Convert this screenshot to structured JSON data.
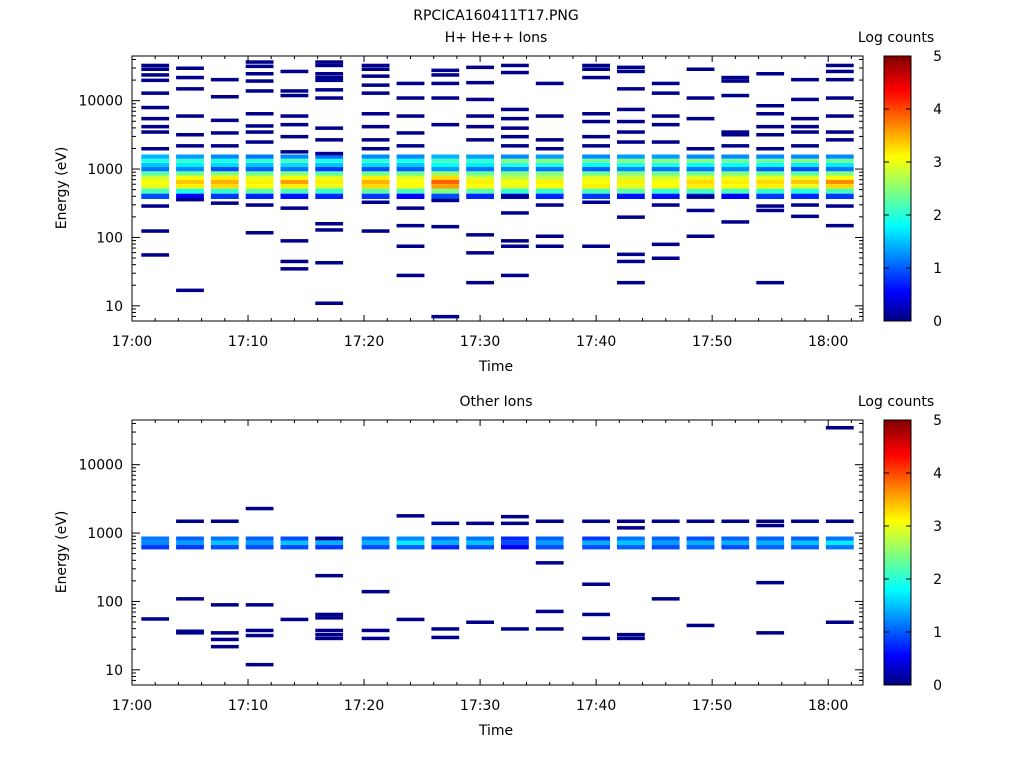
{
  "figure_title": "RPCICA160411T17.PNG",
  "chart_data": [
    {
      "type": "heatmap",
      "title": "H+ He++ Ions",
      "xlabel": "Time",
      "ylabel": "Energy (eV)",
      "x_ticks": [
        "17:00",
        "17:10",
        "17:20",
        "17:30",
        "17:40",
        "17:50",
        "18:00"
      ],
      "x_range": [
        "17:00",
        "18:03"
      ],
      "y_scale": "log",
      "y_ticks": [
        "10",
        "100",
        "1000",
        "10000"
      ],
      "y_range": [
        6,
        45000
      ],
      "colorbar": {
        "label": "Log counts",
        "ticks": [
          "0",
          "1",
          "2",
          "3",
          "4",
          "5"
        ],
        "range": [
          0,
          5
        ]
      },
      "time_bins": [
        "17:02",
        "17:05",
        "17:08",
        "17:11",
        "17:14",
        "17:17",
        "17:21",
        "17:24",
        "17:27",
        "17:30",
        "17:33",
        "17:36",
        "17:40",
        "17:43",
        "17:46",
        "17:49",
        "17:52",
        "17:55",
        "17:58",
        "18:01"
      ],
      "band_energies_eV": [
        400,
        480,
        560,
        650,
        750,
        860,
        1000,
        1150,
        1320,
        1520
      ],
      "band_log_counts": [
        [
          1.0,
          0.6,
          0.9,
          0.8,
          0.7,
          0.8,
          0.9,
          0.6,
          1.0,
          0.8,
          0.6,
          0.8,
          0.9,
          0.7,
          0.7,
          0.8,
          0.6,
          0.9,
          0.8,
          0.9
        ],
        [
          2.2,
          2.0,
          2.1,
          2.3,
          2.2,
          2.1,
          2.3,
          2.2,
          2.5,
          2.3,
          2.1,
          2.1,
          2.2,
          2.3,
          2.1,
          2.2,
          2.2,
          2.1,
          2.0,
          2.2
        ],
        [
          3.0,
          3.2,
          3.3,
          3.1,
          3.2,
          3.0,
          3.3,
          3.1,
          3.6,
          3.1,
          3.0,
          3.1,
          3.2,
          3.0,
          3.1,
          3.2,
          3.1,
          3.2,
          3.0,
          3.3
        ],
        [
          3.1,
          3.4,
          3.5,
          3.2,
          3.6,
          3.2,
          3.5,
          3.1,
          3.9,
          3.2,
          3.1,
          3.2,
          3.1,
          3.2,
          3.1,
          3.3,
          3.2,
          3.3,
          3.4,
          3.7
        ],
        [
          2.9,
          3.1,
          3.2,
          3.0,
          3.1,
          3.0,
          3.2,
          3.0,
          3.3,
          2.9,
          2.8,
          2.8,
          3.0,
          2.9,
          2.9,
          3.0,
          3.0,
          3.0,
          3.0,
          3.1
        ],
        [
          2.3,
          2.4,
          2.5,
          2.4,
          2.5,
          2.3,
          2.4,
          2.4,
          2.6,
          2.4,
          2.5,
          2.5,
          2.4,
          2.5,
          2.4,
          2.4,
          2.5,
          2.4,
          2.3,
          2.5
        ],
        [
          1.2,
          1.3,
          1.0,
          1.1,
          1.2,
          0.9,
          1.0,
          1.1,
          1.4,
          1.2,
          1.3,
          1.2,
          1.1,
          1.3,
          1.2,
          1.2,
          1.3,
          1.1,
          1.0,
          1.2
        ],
        [
          1.6,
          1.8,
          1.7,
          1.6,
          1.7,
          1.6,
          1.7,
          1.6,
          1.9,
          1.8,
          2.0,
          2.0,
          1.9,
          2.0,
          2.0,
          1.9,
          1.9,
          1.9,
          1.8,
          1.8
        ],
        [
          2.0,
          2.1,
          2.0,
          2.1,
          2.2,
          2.0,
          2.1,
          2.0,
          2.2,
          2.1,
          2.5,
          2.5,
          2.4,
          2.5,
          2.5,
          2.5,
          2.4,
          2.4,
          2.5,
          2.4
        ],
        [
          1.5,
          1.4,
          1.3,
          1.2,
          1.3,
          1.2,
          1.3,
          1.3,
          1.5,
          1.4,
          1.3,
          1.4,
          1.3,
          1.4,
          1.4,
          1.3,
          1.3,
          1.3,
          1.3,
          1.3
        ]
      ],
      "sparse_cells": [
        [
          0,
          33000
        ],
        [
          0,
          29000
        ],
        [
          0,
          24000
        ],
        [
          0,
          20000
        ],
        [
          0,
          13000
        ],
        [
          0,
          8000
        ],
        [
          0,
          5500
        ],
        [
          0,
          4200
        ],
        [
          0,
          3500
        ],
        [
          0,
          2000
        ],
        [
          0,
          290
        ],
        [
          0,
          125
        ],
        [
          0,
          56
        ],
        [
          1,
          30000
        ],
        [
          1,
          22000
        ],
        [
          1,
          15000
        ],
        [
          1,
          6000
        ],
        [
          1,
          3200
        ],
        [
          1,
          2200
        ],
        [
          1,
          360
        ],
        [
          1,
          17
        ],
        [
          2,
          20500
        ],
        [
          2,
          11500
        ],
        [
          2,
          5200
        ],
        [
          2,
          3400
        ],
        [
          2,
          2200
        ],
        [
          2,
          320
        ],
        [
          3,
          37000
        ],
        [
          3,
          32000
        ],
        [
          3,
          25000
        ],
        [
          3,
          19500
        ],
        [
          3,
          14000
        ],
        [
          3,
          6500
        ],
        [
          3,
          4300
        ],
        [
          3,
          3500
        ],
        [
          3,
          2500
        ],
        [
          3,
          300
        ],
        [
          3,
          118
        ],
        [
          4,
          27000
        ],
        [
          4,
          14000
        ],
        [
          4,
          12000
        ],
        [
          4,
          6000
        ],
        [
          4,
          4500
        ],
        [
          4,
          3000
        ],
        [
          4,
          1800
        ],
        [
          4,
          270
        ],
        [
          4,
          90
        ],
        [
          4,
          45
        ],
        [
          4,
          35
        ],
        [
          5,
          37000
        ],
        [
          5,
          33000
        ],
        [
          5,
          25000
        ],
        [
          5,
          22000
        ],
        [
          5,
          20000
        ],
        [
          5,
          14500
        ],
        [
          5,
          11000
        ],
        [
          5,
          4000
        ],
        [
          5,
          2700
        ],
        [
          5,
          1700
        ],
        [
          5,
          160
        ],
        [
          5,
          130
        ],
        [
          5,
          43
        ],
        [
          5,
          11
        ],
        [
          6,
          33000
        ],
        [
          6,
          29000
        ],
        [
          6,
          23000
        ],
        [
          6,
          17000
        ],
        [
          6,
          13000
        ],
        [
          6,
          6500
        ],
        [
          6,
          4200
        ],
        [
          6,
          2700
        ],
        [
          6,
          2000
        ],
        [
          6,
          330
        ],
        [
          6,
          125
        ],
        [
          7,
          18000
        ],
        [
          7,
          11000
        ],
        [
          7,
          6000
        ],
        [
          7,
          3400
        ],
        [
          7,
          2200
        ],
        [
          7,
          270
        ],
        [
          7,
          150
        ],
        [
          7,
          75
        ],
        [
          7,
          28
        ],
        [
          8,
          28000
        ],
        [
          8,
          24000
        ],
        [
          8,
          18000
        ],
        [
          8,
          11000
        ],
        [
          8,
          4500
        ],
        [
          8,
          350
        ],
        [
          8,
          145
        ],
        [
          8,
          7
        ],
        [
          9,
          31000
        ],
        [
          9,
          18500
        ],
        [
          9,
          10500
        ],
        [
          9,
          6000
        ],
        [
          9,
          4200
        ],
        [
          9,
          2700
        ],
        [
          9,
          110
        ],
        [
          9,
          60
        ],
        [
          9,
          22
        ],
        [
          10,
          33000
        ],
        [
          10,
          26000
        ],
        [
          10,
          7500
        ],
        [
          10,
          5500
        ],
        [
          10,
          4000
        ],
        [
          10,
          3000
        ],
        [
          10,
          2200
        ],
        [
          10,
          400
        ],
        [
          10,
          230
        ],
        [
          10,
          90
        ],
        [
          10,
          75
        ],
        [
          10,
          28
        ],
        [
          11,
          18000
        ],
        [
          11,
          6000
        ],
        [
          11,
          2700
        ],
        [
          11,
          2000
        ],
        [
          11,
          300
        ],
        [
          11,
          105
        ],
        [
          11,
          75
        ],
        [
          12,
          33000
        ],
        [
          12,
          29000
        ],
        [
          12,
          22000
        ],
        [
          12,
          6500
        ],
        [
          12,
          5000
        ],
        [
          12,
          3000
        ],
        [
          12,
          2200
        ],
        [
          12,
          330
        ],
        [
          12,
          75
        ],
        [
          13,
          31000
        ],
        [
          13,
          27000
        ],
        [
          13,
          15000
        ],
        [
          13,
          7500
        ],
        [
          13,
          5000
        ],
        [
          13,
          3500
        ],
        [
          13,
          2500
        ],
        [
          13,
          200
        ],
        [
          13,
          57
        ],
        [
          13,
          45
        ],
        [
          13,
          22
        ],
        [
          14,
          18000
        ],
        [
          14,
          13000
        ],
        [
          14,
          6000
        ],
        [
          14,
          4500
        ],
        [
          14,
          2500
        ],
        [
          14,
          300
        ],
        [
          14,
          80
        ],
        [
          14,
          50
        ],
        [
          15,
          29000
        ],
        [
          15,
          11000
        ],
        [
          15,
          5500
        ],
        [
          15,
          2000
        ],
        [
          15,
          400
        ],
        [
          15,
          250
        ],
        [
          15,
          105
        ],
        [
          16,
          22000
        ],
        [
          16,
          19500
        ],
        [
          16,
          12000
        ],
        [
          16,
          3500
        ],
        [
          16,
          3200
        ],
        [
          16,
          2200
        ],
        [
          16,
          170
        ],
        [
          17,
          25000
        ],
        [
          17,
          8500
        ],
        [
          17,
          6500
        ],
        [
          17,
          4200
        ],
        [
          17,
          3200
        ],
        [
          17,
          2000
        ],
        [
          17,
          290
        ],
        [
          17,
          250
        ],
        [
          17,
          22
        ],
        [
          18,
          20500
        ],
        [
          18,
          10500
        ],
        [
          18,
          5500
        ],
        [
          18,
          4200
        ],
        [
          18,
          3500
        ],
        [
          18,
          2200
        ],
        [
          18,
          300
        ],
        [
          18,
          205
        ],
        [
          19,
          33000
        ],
        [
          19,
          27000
        ],
        [
          19,
          20500
        ],
        [
          19,
          11000
        ],
        [
          19,
          6000
        ],
        [
          19,
          3500
        ],
        [
          19,
          2700
        ],
        [
          19,
          290
        ],
        [
          19,
          150
        ]
      ]
    },
    {
      "type": "heatmap",
      "title": "Other Ions",
      "xlabel": "Time",
      "ylabel": "Energy (eV)",
      "x_ticks": [
        "17:00",
        "17:10",
        "17:20",
        "17:30",
        "17:40",
        "17:50",
        "18:00"
      ],
      "x_range": [
        "17:00",
        "18:03"
      ],
      "y_scale": "log",
      "y_ticks": [
        "10",
        "100",
        "1000",
        "10000"
      ],
      "y_range": [
        6,
        45000
      ],
      "colorbar": {
        "label": "Log counts",
        "ticks": [
          "0",
          "1",
          "2",
          "3",
          "4",
          "5"
        ],
        "range": [
          0,
          5
        ]
      },
      "time_bins": [
        "17:02",
        "17:05",
        "17:08",
        "17:11",
        "17:14",
        "17:17",
        "17:21",
        "17:24",
        "17:27",
        "17:30",
        "17:33",
        "17:36",
        "17:40",
        "17:43",
        "17:46",
        "17:49",
        "17:52",
        "17:55",
        "17:58",
        "18:01"
      ],
      "band_energies_eV": [
        620,
        720,
        830
      ],
      "band_log_counts": [
        [
          0.9,
          0.9,
          1.0,
          1.0,
          1.0,
          0.9,
          1.0,
          1.1,
          0.8,
          1.0,
          0.6,
          1.0,
          1.0,
          1.1,
          1.0,
          1.1,
          1.0,
          1.1,
          1.1,
          1.2
        ],
        [
          1.3,
          1.4,
          1.6,
          1.4,
          1.6,
          1.5,
          1.5,
          1.8,
          1.5,
          1.6,
          1.0,
          1.4,
          1.5,
          1.6,
          1.4,
          1.5,
          1.5,
          1.5,
          1.6,
          1.8
        ],
        [
          1.2,
          1.1,
          1.2,
          1.1,
          1.0,
          1.1,
          1.2,
          1.3,
          1.2,
          1.2,
          0.8,
          1.1,
          0.9,
          1.2,
          1.1,
          1.0,
          1.1,
          1.1,
          1.1,
          1.2
        ]
      ],
      "sparse_cells": [
        [
          0,
          56
        ],
        [
          1,
          1500
        ],
        [
          1,
          110
        ],
        [
          1,
          37
        ],
        [
          1,
          35
        ],
        [
          2,
          1500
        ],
        [
          2,
          90
        ],
        [
          2,
          35
        ],
        [
          2,
          28
        ],
        [
          2,
          22
        ],
        [
          3,
          2300
        ],
        [
          3,
          90
        ],
        [
          3,
          38
        ],
        [
          3,
          32
        ],
        [
          3,
          12
        ],
        [
          4,
          55
        ],
        [
          5,
          840
        ],
        [
          5,
          240
        ],
        [
          5,
          65
        ],
        [
          5,
          58
        ],
        [
          5,
          38
        ],
        [
          5,
          33
        ],
        [
          5,
          29
        ],
        [
          6,
          140
        ],
        [
          6,
          38
        ],
        [
          6,
          29
        ],
        [
          7,
          1800
        ],
        [
          7,
          55
        ],
        [
          8,
          1400
        ],
        [
          8,
          40
        ],
        [
          8,
          30
        ],
        [
          9,
          1400
        ],
        [
          9,
          50
        ],
        [
          10,
          1750
        ],
        [
          10,
          1400
        ],
        [
          10,
          40
        ],
        [
          11,
          1500
        ],
        [
          11,
          370
        ],
        [
          11,
          72
        ],
        [
          11,
          40
        ],
        [
          12,
          1500
        ],
        [
          12,
          180
        ],
        [
          12,
          65
        ],
        [
          12,
          29
        ],
        [
          13,
          1500
        ],
        [
          13,
          1200
        ],
        [
          13,
          33
        ],
        [
          13,
          29
        ],
        [
          14,
          1500
        ],
        [
          14,
          110
        ],
        [
          15,
          1500
        ],
        [
          15,
          45
        ],
        [
          16,
          1500
        ],
        [
          17,
          1500
        ],
        [
          17,
          1300
        ],
        [
          17,
          190
        ],
        [
          17,
          35
        ],
        [
          18,
          1500
        ],
        [
          19,
          1500
        ],
        [
          19,
          35000
        ],
        [
          19,
          50
        ]
      ]
    }
  ]
}
